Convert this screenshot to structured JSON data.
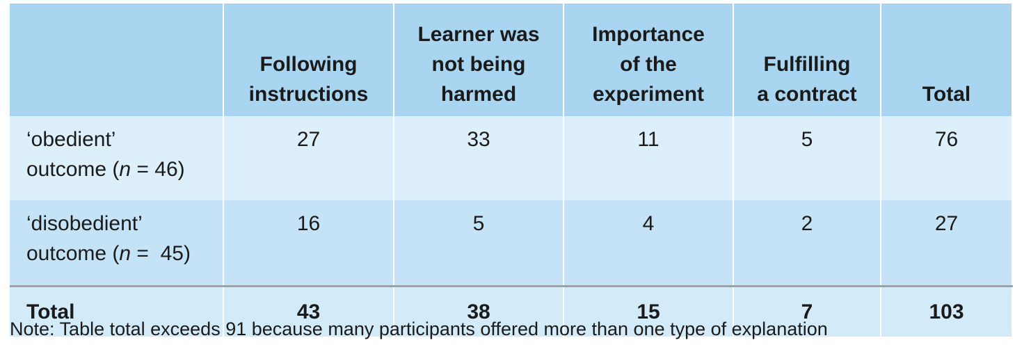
{
  "table": {
    "header": [
      [],
      [
        "Following",
        "instructions"
      ],
      [
        "Learner was",
        "not being",
        "harmed"
      ],
      [
        "Importance",
        "of the",
        "experiment"
      ],
      [
        "Fulfilling",
        "a contract"
      ],
      [
        "Total"
      ]
    ],
    "rows": [
      {
        "label": [
          "‘obedient’",
          "outcome (",
          "n",
          " = 46)"
        ],
        "values": [
          27,
          33,
          11,
          5,
          76
        ]
      },
      {
        "label": [
          "‘disobedient’",
          "outcome (",
          "n",
          " =  45)"
        ],
        "values": [
          16,
          5,
          4,
          2,
          27
        ]
      }
    ],
    "total": {
      "label": "Total",
      "values": [
        43,
        38,
        15,
        7,
        103
      ]
    }
  },
  "note": "Note: Table total exceeds 91 because many participants offered more than one type of explanation"
}
